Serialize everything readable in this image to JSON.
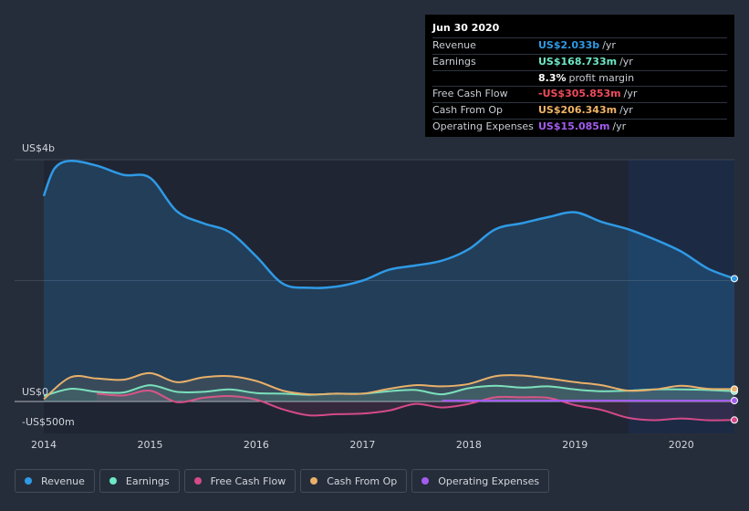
{
  "tooltip": {
    "date": "Jun 30 2020",
    "rows": [
      {
        "label": "Revenue",
        "value": "US$2.033b",
        "unit": "/yr",
        "color": "#2f9ae5"
      },
      {
        "label": "Earnings",
        "value": "US$168.733m",
        "unit": "/yr",
        "color": "#6ee8c6"
      },
      {
        "label": "",
        "value": "8.3%",
        "unit": "profit margin",
        "color": "#ffffff"
      },
      {
        "label": "Free Cash Flow",
        "value": "-US$305.853m",
        "unit": "/yr",
        "color": "#ef4b5d"
      },
      {
        "label": "Cash From Op",
        "value": "US$206.343m",
        "unit": "/yr",
        "color": "#f1b465"
      },
      {
        "label": "Operating Expenses",
        "value": "US$15.085m",
        "unit": "/yr",
        "color": "#a35cf0"
      }
    ]
  },
  "legend": [
    {
      "label": "Revenue",
      "color": "#2f9ae5"
    },
    {
      "label": "Earnings",
      "color": "#6ee8c6"
    },
    {
      "label": "Free Cash Flow",
      "color": "#d44a8a"
    },
    {
      "label": "Cash From Op",
      "color": "#e8b06a"
    },
    {
      "label": "Operating Expenses",
      "color": "#a35cf0"
    }
  ],
  "chart_data": {
    "type": "area",
    "title": "",
    "y_axis_labels": [
      "US$4b",
      "US$0",
      "-US$500m"
    ],
    "ylim": [
      -500,
      4000
    ],
    "y_unit": "US$m",
    "x_ticks": [
      "2014",
      "2015",
      "2016",
      "2017",
      "2018",
      "2019",
      "2020"
    ],
    "xlim": [
      2014.0,
      2020.5
    ],
    "forecast_start": 2019.5,
    "series": [
      {
        "name": "Revenue",
        "color": "#2f9ae5",
        "fill": true,
        "x": [
          2014.0,
          2014.1,
          2014.25,
          2014.5,
          2014.75,
          2015.0,
          2015.25,
          2015.5,
          2015.75,
          2016.0,
          2016.25,
          2016.5,
          2016.75,
          2017.0,
          2017.25,
          2017.5,
          2017.75,
          2018.0,
          2018.25,
          2018.5,
          2018.75,
          2019.0,
          2019.25,
          2019.5,
          2019.75,
          2020.0,
          2020.25,
          2020.5
        ],
        "y": [
          3400,
          3850,
          3980,
          3900,
          3750,
          3700,
          3150,
          2950,
          2800,
          2400,
          1950,
          1880,
          1900,
          2000,
          2180,
          2250,
          2330,
          2520,
          2850,
          2950,
          3050,
          3130,
          2970,
          2850,
          2680,
          2480,
          2200,
          2033
        ]
      },
      {
        "name": "Earnings",
        "color": "#6ee8c6",
        "x": [
          2014.0,
          2014.25,
          2014.5,
          2014.75,
          2015.0,
          2015.25,
          2015.5,
          2015.75,
          2016.0,
          2016.25,
          2016.5,
          2016.75,
          2017.0,
          2017.25,
          2017.5,
          2017.75,
          2018.0,
          2018.25,
          2018.5,
          2018.75,
          2019.0,
          2019.25,
          2019.5,
          2019.75,
          2020.0,
          2020.25,
          2020.5
        ],
        "y": [
          90,
          210,
          160,
          150,
          270,
          160,
          160,
          200,
          140,
          130,
          110,
          130,
          130,
          170,
          190,
          120,
          220,
          260,
          230,
          250,
          200,
          170,
          180,
          200,
          200,
          190,
          169
        ]
      },
      {
        "name": "Free Cash Flow",
        "color": "#d44a8a",
        "x": [
          2014.5,
          2014.75,
          2015.0,
          2015.25,
          2015.5,
          2015.75,
          2016.0,
          2016.25,
          2016.5,
          2016.75,
          2017.0,
          2017.25,
          2017.5,
          2017.75,
          2018.0,
          2018.25,
          2018.5,
          2018.75,
          2019.0,
          2019.25,
          2019.5,
          2019.75,
          2020.0,
          2020.25,
          2020.5
        ],
        "y": [
          130,
          100,
          180,
          -10,
          60,
          90,
          30,
          -130,
          -230,
          -210,
          -200,
          -150,
          -40,
          -100,
          -40,
          70,
          70,
          60,
          -60,
          -140,
          -270,
          -310,
          -280,
          -310,
          -306
        ]
      },
      {
        "name": "Cash From Op",
        "color": "#e8b06a",
        "x": [
          2014.0,
          2014.25,
          2014.5,
          2014.75,
          2015.0,
          2015.25,
          2015.5,
          2015.75,
          2016.0,
          2016.25,
          2016.5,
          2016.75,
          2017.0,
          2017.25,
          2017.5,
          2017.75,
          2018.0,
          2018.25,
          2018.5,
          2018.75,
          2019.0,
          2019.25,
          2019.5,
          2019.75,
          2020.0,
          2020.25,
          2020.5
        ],
        "y": [
          40,
          400,
          380,
          360,
          470,
          320,
          400,
          420,
          340,
          180,
          120,
          130,
          130,
          210,
          270,
          250,
          290,
          420,
          430,
          380,
          320,
          270,
          180,
          200,
          260,
          210,
          206
        ]
      },
      {
        "name": "Operating Expenses",
        "color": "#a35cf0",
        "x": [
          2017.75,
          2018.0,
          2018.5,
          2019.0,
          2019.5,
          2020.0,
          2020.5
        ],
        "y": [
          15,
          15,
          15,
          15,
          15,
          15,
          15
        ]
      }
    ]
  }
}
